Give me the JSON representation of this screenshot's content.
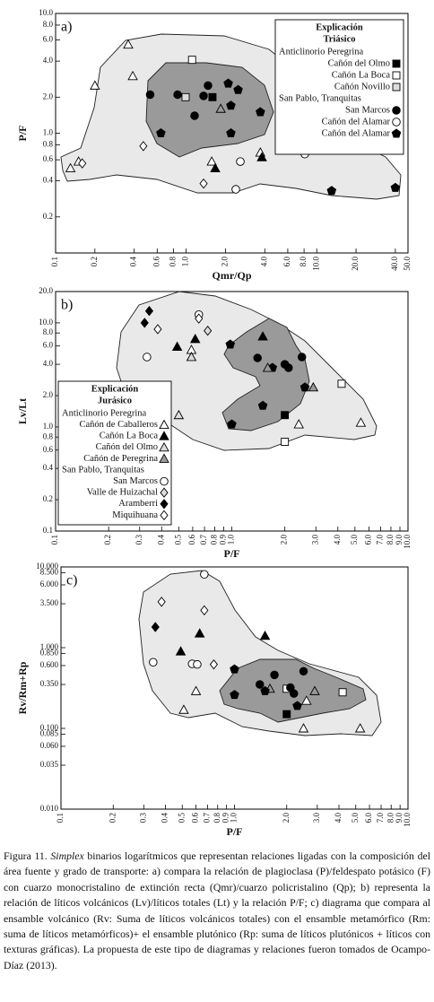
{
  "chart_data": [
    {
      "type": "scatter",
      "panel": "a)",
      "xlabel": "Qmr/Qp",
      "ylabel": "P/F",
      "xlog": true,
      "ylog": true,
      "xlim": [
        0.1,
        50
      ],
      "ylim": [
        0.1,
        10
      ],
      "xticks": [
        0.1,
        0.2,
        0.4,
        0.6,
        0.8,
        {
          "value": 1,
          "label": "1.0"
        },
        {
          "value": 2,
          "label": "2.0"
        },
        {
          "value": 4,
          "label": "4.0"
        },
        {
          "value": 6,
          "label": "6.0"
        },
        {
          "value": 8,
          "label": "8.0"
        },
        {
          "value": 10,
          "label": "10.0"
        },
        {
          "value": 20,
          "label": "20.0"
        },
        {
          "value": 40,
          "label": "40.0"
        },
        {
          "value": 50,
          "label": "50.0"
        }
      ],
      "yticks": [
        0.2,
        0.4,
        0.6,
        0.8,
        {
          "value": 1,
          "label": "1.0"
        },
        {
          "value": 2,
          "label": "2.0"
        },
        {
          "value": 4,
          "label": "4.0"
        },
        {
          "value": 6,
          "label": "6.0"
        },
        {
          "value": 8,
          "label": "8.0"
        },
        {
          "value": 10,
          "label": "10.0"
        }
      ],
      "legend": {
        "title": "Explicación",
        "subtitle": "Triásico"
      },
      "groups": [
        {
          "name": "Anticlinorio Peregrina",
          "series": [
            {
              "name": "Cañón del Olmo",
              "marker": "square",
              "color": "#000000",
              "x": [
                1.59
              ],
              "values": [
                2.0
              ]
            },
            {
              "name": "Cañón La Boca",
              "marker": "square",
              "color": "#ffffff",
              "x": [
                1.11
              ],
              "values": [
                4.1
              ]
            },
            {
              "name": "Cañón Novillo",
              "marker": "square",
              "color": "#dddddd",
              "x": [
                0.99
              ],
              "values": [
                2.0
              ]
            }
          ]
        },
        {
          "name": "San Pablo, Tranquitas",
          "series": [
            {
              "name": "San Marcos",
              "marker": "circle",
              "color": "#000000",
              "x": [
                0.53,
                0.86,
                1.16,
                1.36,
                1.47
              ],
              "values": [
                2.1,
                2.1,
                1.4,
                2.05,
                2.5
              ]
            },
            {
              "name": "Cañón del Alamar",
              "marker": "circle",
              "color": "#ffffff",
              "x": [
                2.6,
                2.4,
                8.1
              ],
              "values": [
                0.58,
                0.34,
                0.67
              ]
            },
            {
              "name": "Cañón del Alamar",
              "marker": "pentagon",
              "color": "#000000",
              "x": [
                0.64,
                2.1,
                2.5,
                2.2,
                3.7,
                2.2,
                13,
                40
              ],
              "values": [
                1.0,
                2.6,
                2.3,
                1.7,
                1.5,
                1.0,
                0.33,
                0.35
              ]
            }
          ]
        }
      ],
      "series": [
        {
          "marker": "triangle",
          "color": "#ffffff",
          "x": [
            0.36,
            0.39,
            0.2,
            0.13,
            0.15,
            1.57,
            3.7
          ],
          "values": [
            5.5,
            3.0,
            2.5,
            0.51,
            0.58,
            0.58,
            0.69
          ]
        },
        {
          "marker": "triangle",
          "color": "#000000",
          "x": [
            1.67,
            3.8
          ],
          "values": [
            0.51,
            0.63
          ]
        },
        {
          "marker": "triangle",
          "color": "#999999",
          "x": [
            1.84
          ],
          "values": [
            1.6
          ]
        },
        {
          "marker": "diamond",
          "color": "#ffffff",
          "x": [
            0.16,
            0.47,
            1.36
          ],
          "values": [
            0.56,
            0.78,
            0.38
          ]
        }
      ]
    },
    {
      "type": "scatter",
      "panel": "b)",
      "xlabel": "P/F",
      "ylabel": "Lv/Lt",
      "xlog": true,
      "ylog": true,
      "xlim": [
        0.1,
        10
      ],
      "ylim": [
        0.1,
        20
      ],
      "xticks": [
        0.1,
        0.2,
        0.3,
        0.4,
        0.5,
        0.6,
        0.7,
        0.8,
        0.9,
        {
          "value": 1,
          "label": "1.0"
        },
        {
          "value": 2,
          "label": "2.0"
        },
        {
          "value": 3,
          "label": "3.0"
        },
        {
          "value": 4,
          "label": "4.0"
        },
        {
          "value": 5,
          "label": "5.0"
        },
        {
          "value": 6,
          "label": "6.0"
        },
        {
          "value": 7,
          "label": "7.0"
        },
        {
          "value": 8,
          "label": "8.0"
        },
        {
          "value": 9,
          "label": "9.0"
        },
        {
          "value": 10,
          "label": "10.0"
        }
      ],
      "yticks": [
        0.1,
        0.2,
        0.4,
        0.6,
        0.8,
        {
          "value": 1,
          "label": "1.0"
        },
        {
          "value": 2,
          "label": "2.0"
        },
        {
          "value": 4,
          "label": "4.0"
        },
        {
          "value": 6,
          "label": "6.0"
        },
        {
          "value": 8,
          "label": "8.0"
        },
        {
          "value": 10,
          "label": "10.0"
        },
        {
          "value": 20,
          "label": "20.0"
        }
      ],
      "legend": {
        "title": "Explicación",
        "subtitle": "Jurásico"
      },
      "groups": [
        {
          "name": "Anticlinorio Peregrina",
          "series": [
            {
              "name": "Cañón de Caballeros",
              "marker": "triangle",
              "color": "#ffffff",
              "x": [
                0.59,
                2.4,
                5.4
              ],
              "values": [
                5.5,
                1.06,
                1.1
              ]
            },
            {
              "name": "Cañón La Boca",
              "marker": "triangle",
              "color": "#000000",
              "x": [
                0.49,
                0.62,
                1.5
              ],
              "values": [
                5.9,
                7.0,
                7.4
              ]
            },
            {
              "name": "Cañón del Olmo",
              "marker": "triangle",
              "color": "#dddddd",
              "x": [
                0.5,
                0.59
              ],
              "values": [
                1.3,
                4.7
              ]
            },
            {
              "name": "Cañón de Peregrina",
              "marker": "triangle",
              "color": "#999999",
              "x": [
                1.6,
                2.9
              ],
              "values": [
                3.7,
                2.4
              ]
            }
          ]
        },
        {
          "name": "San Pablo, Tranquitas",
          "series": [
            {
              "name": "San Marcos",
              "marker": "circle",
              "color": "#ffffff",
              "x": [
                0.33,
                0.65
              ],
              "values": [
                4.7,
                12
              ]
            },
            {
              "name": "Valle de Huizachal",
              "marker": "diamond",
              "color": "#dddddd",
              "x": [
                0.73
              ],
              "values": [
                8.4
              ]
            },
            {
              "name": "Aramberri",
              "marker": "diamond",
              "color": "#000000",
              "x": [
                0.32,
                0.34
              ],
              "values": [
                10,
                13
              ]
            },
            {
              "name": "Miquihuana",
              "marker": "diamond",
              "color": "#ffffff",
              "x": [
                0.38,
                0.65
              ],
              "values": [
                8.7,
                11
              ]
            }
          ]
        }
      ],
      "series": [
        {
          "marker": "square",
          "color": "#ffffff",
          "x": [
            2.0,
            4.2
          ],
          "values": [
            0.72,
            2.6
          ]
        },
        {
          "marker": "square",
          "color": "#000000",
          "x": [
            2.0
          ],
          "values": [
            1.3
          ]
        },
        {
          "marker": "circle",
          "color": "#000000",
          "x": [
            1.4,
            2.0,
            2.1,
            2.5
          ],
          "values": [
            4.6,
            4.0,
            3.7,
            4.7
          ]
        },
        {
          "marker": "pentagon",
          "color": "#000000",
          "x": [
            0.98,
            1.7,
            1.5,
            1.0,
            2.6
          ],
          "values": [
            6.2,
            3.7,
            1.6,
            1.06,
            2.4
          ]
        }
      ]
    },
    {
      "type": "scatter",
      "panel": "c)",
      "xlabel": "P/F",
      "ylabel": "Rv/Rm+Rp",
      "xlog": true,
      "ylog": true,
      "xlim": [
        0.1,
        10
      ],
      "ylim": [
        0.01,
        10
      ],
      "xticks": [
        0.1,
        0.2,
        0.3,
        0.4,
        0.5,
        0.6,
        0.7,
        0.8,
        0.9,
        {
          "value": 1,
          "label": "1.0"
        },
        {
          "value": 2,
          "label": "2.0"
        },
        {
          "value": 3,
          "label": "3.0"
        },
        {
          "value": 4,
          "label": "4.0"
        },
        {
          "value": 5,
          "label": "5.0"
        },
        {
          "value": 6,
          "label": "6.0"
        },
        {
          "value": 7,
          "label": "7.0"
        },
        {
          "value": 8,
          "label": "8.0"
        },
        {
          "value": 9,
          "label": "9.0"
        },
        {
          "value": 10,
          "label": "10.0"
        }
      ],
      "yticks": [
        {
          "value": 0.01,
          "label": "0.010"
        },
        0.035,
        {
          "value": 0.06,
          "label": "0.060"
        },
        0.085,
        {
          "value": 0.1,
          "label": "0.100"
        },
        {
          "value": 0.35,
          "label": "0.350"
        },
        {
          "value": 0.6,
          "label": "0.600"
        },
        {
          "value": 0.85,
          "label": "0.850"
        },
        {
          "value": 1,
          "label": "1.000"
        },
        {
          "value": 3.5,
          "label": "3.500"
        },
        {
          "value": 6,
          "label": "6.000"
        },
        {
          "value": 8.5,
          "label": "8.500"
        },
        {
          "value": 10,
          "label": "10.000"
        }
      ],
      "series": [
        {
          "marker": "circle",
          "color": "#ffffff",
          "x": [
            0.67,
            0.34,
            0.57,
            0.61
          ],
          "values": [
            8.1,
            0.66,
            0.63,
            0.62
          ]
        },
        {
          "marker": "diamond",
          "color": "#ffffff",
          "x": [
            0.38,
            0.67,
            0.76
          ],
          "values": [
            3.7,
            2.9,
            0.62
          ]
        },
        {
          "marker": "diamond",
          "color": "#000000",
          "x": [
            0.35
          ],
          "values": [
            1.8
          ]
        },
        {
          "marker": "triangle",
          "color": "#000000",
          "x": [
            0.49,
            0.63,
            1.5
          ],
          "values": [
            0.9,
            1.5,
            1.4
          ]
        },
        {
          "marker": "triangle",
          "color": "#ffffff",
          "x": [
            0.51,
            0.6,
            2.6,
            5.3,
            2.5
          ],
          "values": [
            0.17,
            0.29,
            0.22,
            0.1,
            0.1
          ]
        },
        {
          "marker": "triangle",
          "color": "#999999",
          "x": [
            1.6,
            2.9
          ],
          "values": [
            0.31,
            0.29
          ]
        },
        {
          "marker": "square",
          "color": "#ffffff",
          "x": [
            2.0,
            4.2
          ],
          "values": [
            0.31,
            0.28
          ]
        },
        {
          "marker": "square",
          "color": "#000000",
          "x": [
            2.0
          ],
          "values": [
            0.15
          ]
        },
        {
          "marker": "circle",
          "color": "#000000",
          "x": [
            1.4,
            1.7,
            2.1,
            2.2,
            2.5
          ],
          "values": [
            0.35,
            0.46,
            0.32,
            0.27,
            0.51
          ]
        },
        {
          "marker": "pentagon",
          "color": "#000000",
          "x": [
            1.0,
            1.0,
            1.5,
            2.3
          ],
          "values": [
            0.54,
            0.26,
            0.29,
            0.19
          ]
        }
      ]
    }
  ],
  "caption": {
    "label": "Figura 11.",
    "emphasis": "Simplex",
    "text": "binarios logarítmicos que representan relaciones ligadas con la composición del área fuente y grado de transporte: a) compara la relación de plagioclasa (P)/feldespato potásico (F) con cuarzo monocristalino de extinción recta (Qmr)/cuarzo policristalino (Qp); b) representa la relación de líticos volcánicos (Lv)/líticos totales (Lt) y la relación P/F; c) diagrama que compara al ensamble volcánico (Rv: Suma de líticos volcánicos totales) con el ensamble metamórfico (Rm: suma de líticos metamórficos)+ el ensamble plutónico (Rp: suma de líticos plutónicos + líticos con texturas gráficas). La propuesta de este tipo de diagramas y relaciones fueron tomados de Ocampo-Díaz (2013)."
  }
}
